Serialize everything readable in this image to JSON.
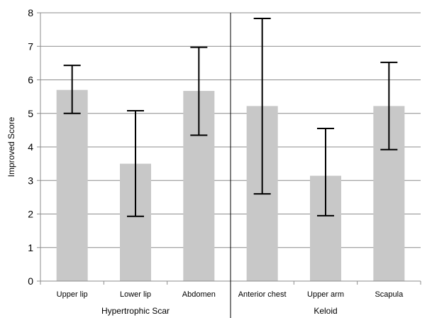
{
  "chart_data": {
    "type": "bar",
    "ylabel": "Improved Score",
    "xlabel": "",
    "ylim": [
      0,
      8
    ],
    "yticks": [
      0,
      1,
      2,
      3,
      4,
      5,
      6,
      7,
      8
    ],
    "grid": true,
    "bar_color": "#c8c8c8",
    "groups": [
      {
        "label": "Hypertrophic Scar",
        "categories": [
          "Upper lip",
          "Lower lip",
          "Abdomen"
        ]
      },
      {
        "label": "Keloid",
        "categories": [
          "Anterior chest",
          "Upper arm",
          "Scapula"
        ]
      }
    ],
    "categories": [
      "Upper lip",
      "Lower lip",
      "Abdomen",
      "Anterior chest",
      "Upper arm",
      "Scapula"
    ],
    "values": [
      5.7,
      3.5,
      5.67,
      5.22,
      3.14,
      5.22
    ],
    "error_low": [
      5.0,
      1.93,
      4.35,
      2.6,
      1.95,
      3.92
    ],
    "error_high": [
      6.43,
      5.08,
      6.97,
      7.83,
      4.55,
      6.52
    ]
  }
}
